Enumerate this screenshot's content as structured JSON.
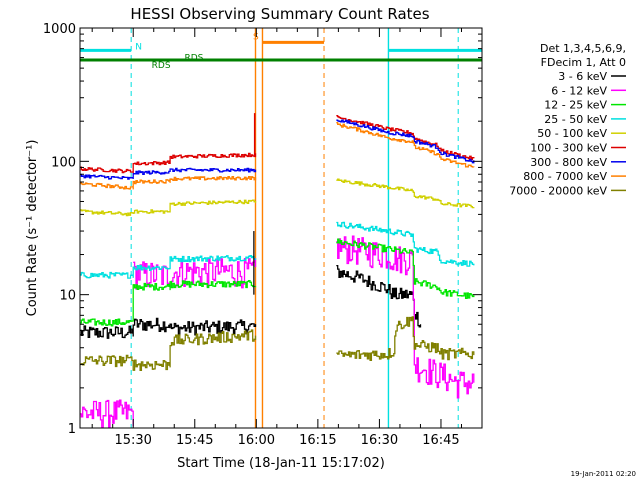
{
  "chart_data": {
    "type": "line",
    "title": "HESSI Observing Summary Count Rates",
    "xlabel": "Start Time (18-Jan-11 15:17:02)",
    "ylabel": "Count Rate (s⁻¹ detector⁻¹)",
    "yscale": "log",
    "ylim": [
      1,
      1000
    ],
    "xlim_minutes": [
      17.03,
      115.0
    ],
    "x_ticks": [
      {
        "label": "15:30",
        "minute": 30
      },
      {
        "label": "15:45",
        "minute": 45
      },
      {
        "label": "16:00",
        "minute": 60
      },
      {
        "label": "16:15",
        "minute": 75
      },
      {
        "label": "16:30",
        "minute": 90
      },
      {
        "label": "16:45",
        "minute": 105
      }
    ],
    "y_ticks": [
      {
        "label": "1",
        "value": 1
      },
      {
        "label": "10",
        "value": 10
      },
      {
        "label": "100",
        "value": 100
      },
      {
        "label": "1000",
        "value": 1000
      }
    ],
    "legend": {
      "header": [
        "Det 1,3,4,5,6,9,",
        "FDecim 1, Att 0"
      ],
      "placement": "right",
      "entries": [
        {
          "label": "3 - 6 keV",
          "color": "#000000"
        },
        {
          "label": "6 - 12 keV",
          "color": "#ff00ff"
        },
        {
          "label": "12 - 25 keV",
          "color": "#00e600"
        },
        {
          "label": "25 - 50 keV",
          "color": "#00e0e0"
        },
        {
          "label": "50 - 100 keV",
          "color": "#d0d000"
        },
        {
          "label": "100 - 300 keV",
          "color": "#dd0000"
        },
        {
          "label": "300 - 800 keV",
          "color": "#0000ee"
        },
        {
          "label": "800 - 7000 keV",
          "color": "#ff8000"
        },
        {
          "label": "7000 - 20000 keV",
          "color": "#808000"
        }
      ]
    },
    "flags": [
      {
        "label": "N",
        "color": "#00e0e0",
        "value": 680,
        "segments": [
          [
            17.03,
            29.5
          ],
          [
            92.2,
            115
          ]
        ]
      },
      {
        "label": "RDS",
        "color": "#008000",
        "value": 575,
        "segments": [
          [
            17.03,
            115
          ]
        ]
      },
      {
        "label": "S",
        "color": "#ff8000",
        "value": 780,
        "segments": [
          [
            61.5,
            76.5
          ]
        ]
      }
    ],
    "flag_labels": [
      {
        "text": "N",
        "color": "#00e0e0",
        "minute": 30.5,
        "value": 690
      },
      {
        "text": "RDS",
        "color": "#008000",
        "minute": 42.5,
        "value": 570
      },
      {
        "text": "RDS",
        "color": "#008000",
        "minute": 34.5,
        "value": 500
      },
      {
        "text": "S",
        "color": "#ff8000",
        "minute": 59.2,
        "value": 820
      }
    ],
    "vertical_markers": [
      {
        "minute": 29.5,
        "color": "#00e0e0",
        "style": "dashed"
      },
      {
        "minute": 59.8,
        "color": "#ff8000",
        "style": "solid"
      },
      {
        "minute": 61.5,
        "color": "#ff8000",
        "style": "solid"
      },
      {
        "minute": 76.5,
        "color": "#ff8000",
        "style": "dashed"
      },
      {
        "minute": 92.2,
        "color": "#00e0e0",
        "style": "solid"
      },
      {
        "minute": 109.2,
        "color": "#00e0e0",
        "style": "dashed"
      }
    ],
    "series": [
      {
        "name": "3 - 6 keV",
        "color": "#000000",
        "noise": 0.12,
        "segments": [
          [
            [
              17.03,
              5.2
            ],
            [
              30,
              5.2
            ],
            [
              30,
              6.0
            ],
            [
              39,
              6.0
            ],
            [
              39,
              5.6
            ],
            [
              59.8,
              5.8
            ]
          ],
          [
            [
              79.5,
              15
            ],
            [
              86,
              13
            ],
            [
              92,
              11
            ],
            [
              93.5,
              10
            ],
            [
              98,
              10
            ],
            [
              98.5,
              7.5
            ],
            [
              100,
              6
            ]
          ]
        ]
      },
      {
        "name": "6 - 12 keV",
        "color": "#ff00ff",
        "noise": 0.25,
        "segments": [
          [
            [
              17.03,
              1.3
            ],
            [
              30,
              1.3
            ]
          ],
          [
            [
              30,
              14.5
            ],
            [
              38,
              14
            ],
            [
              41,
              15
            ],
            [
              59.8,
              15
            ]
          ],
          [
            [
              79.5,
              23
            ],
            [
              92,
              20
            ],
            [
              93.5,
              19
            ],
            [
              98,
              18.5
            ],
            [
              98.5,
              3
            ],
            [
              109,
              2.2
            ],
            [
              113,
              2.2
            ]
          ]
        ]
      },
      {
        "name": "12 - 25 keV",
        "color": "#00e600",
        "noise": 0.06,
        "segments": [
          [
            [
              17.03,
              6.2
            ],
            [
              30,
              6.2
            ],
            [
              30,
              11.5
            ],
            [
              39,
              11.5
            ],
            [
              39,
              12
            ],
            [
              59.8,
              12
            ]
          ],
          [
            [
              79.5,
              25
            ],
            [
              92,
              22
            ],
            [
              98,
              20.5
            ],
            [
              98.5,
              12.5
            ],
            [
              104,
              11.5
            ],
            [
              105,
              10.5
            ],
            [
              113,
              9.6
            ]
          ]
        ]
      },
      {
        "name": "25 - 50 keV",
        "color": "#00e0e0",
        "noise": 0.05,
        "segments": [
          [
            [
              17.03,
              14
            ],
            [
              30,
              14
            ],
            [
              30,
              16
            ],
            [
              39,
              16
            ],
            [
              39,
              18.5
            ],
            [
              59.8,
              19
            ]
          ],
          [
            [
              79.5,
              34
            ],
            [
              92,
              30
            ],
            [
              98,
              28
            ],
            [
              98.5,
              22
            ],
            [
              104,
              21
            ],
            [
              105,
              18
            ],
            [
              113,
              17
            ]
          ]
        ]
      },
      {
        "name": "50 - 100 keV",
        "color": "#d0d000",
        "noise": 0.03,
        "segments": [
          [
            [
              17.03,
              42
            ],
            [
              30,
              40
            ],
            [
              30,
              42
            ],
            [
              39,
              42
            ],
            [
              39,
              48
            ],
            [
              59.8,
              50
            ]
          ],
          [
            [
              79.5,
              72
            ],
            [
              92,
              64
            ],
            [
              98,
              60
            ],
            [
              98.5,
              55
            ],
            [
              104,
              52
            ],
            [
              105,
              48
            ],
            [
              113,
              46
            ]
          ]
        ]
      },
      {
        "name": "100 - 300 keV",
        "color": "#dd0000",
        "noise": 0.03,
        "segments": [
          [
            [
              17.03,
              88
            ],
            [
              30,
              84
            ],
            [
              30,
              96
            ],
            [
              39,
              98
            ],
            [
              39,
              108
            ],
            [
              59.8,
              112
            ]
          ],
          [
            [
              79.5,
              215
            ],
            [
              92,
              175
            ],
            [
              98,
              162
            ],
            [
              98.5,
              148
            ],
            [
              104,
              132
            ],
            [
              105,
              120
            ],
            [
              113,
              104
            ]
          ]
        ]
      },
      {
        "name": "300 - 800 keV",
        "color": "#0000ee",
        "noise": 0.03,
        "segments": [
          [
            [
              17.03,
              78
            ],
            [
              30,
              74
            ],
            [
              30,
              82
            ],
            [
              39,
              83
            ],
            [
              39,
              86
            ],
            [
              59.8,
              86
            ]
          ],
          [
            [
              79.5,
              205
            ],
            [
              92,
              165
            ],
            [
              98,
              155
            ],
            [
              98.5,
              142
            ],
            [
              104,
              128
            ],
            [
              105,
              115
            ],
            [
              113,
              99
            ]
          ]
        ]
      },
      {
        "name": "800 - 7000 keV",
        "color": "#ff8000",
        "noise": 0.03,
        "segments": [
          [
            [
              17.03,
              68
            ],
            [
              30,
              63
            ],
            [
              30,
              70
            ],
            [
              39,
              71
            ],
            [
              39,
              74
            ],
            [
              59.8,
              75
            ]
          ],
          [
            [
              79.5,
              190
            ],
            [
              92,
              150
            ],
            [
              98,
              140
            ],
            [
              98.5,
              128
            ],
            [
              104,
              114
            ],
            [
              105,
              104
            ],
            [
              113,
              90
            ]
          ]
        ]
      },
      {
        "name": "7000 - 20000 keV",
        "color": "#808000",
        "noise": 0.1,
        "segments": [
          [
            [
              17.03,
              3.2
            ],
            [
              30,
              3.2
            ],
            [
              30,
              3.0
            ],
            [
              39,
              3.0
            ],
            [
              39,
              4.5
            ],
            [
              59.8,
              5.0
            ]
          ],
          [
            [
              79.5,
              3.5
            ],
            [
              92,
              3.6
            ],
            [
              93.5,
              3.8
            ],
            [
              94,
              5.8
            ],
            [
              98,
              6.5
            ],
            [
              98.5,
              4.2
            ],
            [
              104,
              4.0
            ],
            [
              105,
              3.6
            ],
            [
              113,
              3.6
            ]
          ]
        ]
      }
    ]
  },
  "footer_timestamp": "19-Jan-2011 02:20"
}
